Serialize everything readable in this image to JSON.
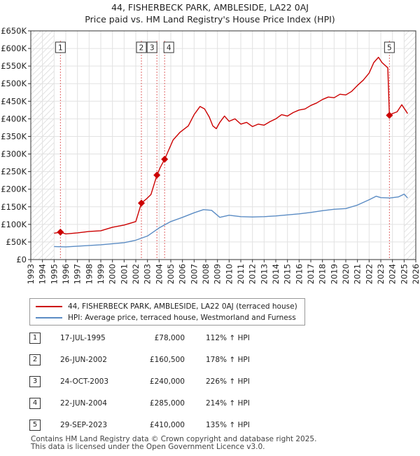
{
  "title_line1": "44, FISHERBECK PARK, AMBLESIDE, LA22 0AJ",
  "title_line2": "Price paid vs. HM Land Registry's House Price Index (HPI)",
  "chart_data": {
    "type": "line",
    "title": "44, FISHERBECK PARK, AMBLESIDE, LA22 0AJ — Price paid vs. HM Land Registry's House Price Index (HPI)",
    "xlim": [
      1993,
      2026
    ],
    "ylim": [
      0,
      650000
    ],
    "y_ticks": [
      0,
      50000,
      100000,
      150000,
      200000,
      250000,
      300000,
      350000,
      400000,
      450000,
      500000,
      550000,
      600000,
      650000
    ],
    "y_tick_labels": [
      "£0",
      "£50K",
      "£100K",
      "£150K",
      "£200K",
      "£250K",
      "£300K",
      "£350K",
      "£400K",
      "£450K",
      "£500K",
      "£550K",
      "£600K",
      "£650K"
    ],
    "x_ticks": [
      1993,
      1994,
      1995,
      1996,
      1997,
      1998,
      1999,
      2000,
      2001,
      2002,
      2003,
      2004,
      2005,
      2006,
      2007,
      2008,
      2009,
      2010,
      2011,
      2012,
      2013,
      2014,
      2015,
      2016,
      2017,
      2018,
      2019,
      2020,
      2021,
      2022,
      2023,
      2024,
      2025,
      2026
    ],
    "x_tick_labels": [
      "1993",
      "1994",
      "1995",
      "1996",
      "1997",
      "1998",
      "1999",
      "2000",
      "2001",
      "2002",
      "2003",
      "2004",
      "2005",
      "2006",
      "2007",
      "2008",
      "2009",
      "2010",
      "2011",
      "2012",
      "2013",
      "2014",
      "2015",
      "2016",
      "2017",
      "2018",
      "2019",
      "2020",
      "2021",
      "2022",
      "2023",
      "2024",
      "2025",
      "2026"
    ],
    "hatched_ranges": [
      [
        1993,
        1995.0
      ],
      [
        2025.0,
        2026
      ]
    ],
    "series": [
      {
        "name": "44, FISHERBECK PARK, AMBLESIDE, LA22 0AJ (terraced house)",
        "color": "#cc0000",
        "x": [
          1995.0,
          1995.54,
          1996.0,
          1997.0,
          1998.0,
          1999.0,
          2000.0,
          2001.0,
          2001.5,
          2002.0,
          2002.48,
          2002.9,
          2003.3,
          2003.81,
          2004.1,
          2004.47,
          2004.8,
          2005.2,
          2005.8,
          2006.5,
          2007.0,
          2007.5,
          2007.9,
          2008.3,
          2008.6,
          2008.9,
          2009.2,
          2009.6,
          2010.0,
          2010.5,
          2011.0,
          2011.5,
          2012.0,
          2012.5,
          2013.0,
          2013.5,
          2014.0,
          2014.5,
          2015.0,
          2015.5,
          2016.0,
          2016.5,
          2017.0,
          2017.5,
          2018.0,
          2018.5,
          2019.0,
          2019.5,
          2020.0,
          2020.5,
          2021.0,
          2021.5,
          2022.0,
          2022.4,
          2022.8,
          2023.1,
          2023.6,
          2023.74,
          2024.0,
          2024.4,
          2024.8,
          2025.1,
          2025.3
        ],
        "values": [
          75000,
          78000,
          73000,
          76000,
          80000,
          82000,
          92000,
          98000,
          103000,
          108000,
          160500,
          172000,
          185000,
          240000,
          262000,
          285000,
          310000,
          340000,
          362000,
          380000,
          412000,
          435000,
          428000,
          405000,
          380000,
          372000,
          390000,
          408000,
          393000,
          400000,
          385000,
          390000,
          378000,
          385000,
          382000,
          392000,
          400000,
          412000,
          408000,
          418000,
          425000,
          428000,
          438000,
          445000,
          455000,
          462000,
          460000,
          470000,
          468000,
          478000,
          495000,
          510000,
          530000,
          560000,
          575000,
          560000,
          545000,
          410000,
          415000,
          420000,
          440000,
          425000,
          415000
        ]
      },
      {
        "name": "HPI: Average price, terraced house, Westmorland and Furness",
        "color": "#5b8cc4",
        "x": [
          1995.0,
          1996.0,
          1997.0,
          1998.0,
          1999.0,
          2000.0,
          2001.0,
          2002.0,
          2003.0,
          2004.0,
          2005.0,
          2006.0,
          2007.0,
          2007.8,
          2008.5,
          2009.2,
          2010.0,
          2011.0,
          2012.0,
          2013.0,
          2014.0,
          2015.0,
          2016.0,
          2017.0,
          2018.0,
          2019.0,
          2020.0,
          2021.0,
          2022.0,
          2022.6,
          2023.0,
          2023.8,
          2024.5,
          2025.0,
          2025.3
        ],
        "values": [
          37000,
          36000,
          38000,
          40000,
          42000,
          45000,
          48000,
          55000,
          67000,
          90000,
          108000,
          120000,
          133000,
          142000,
          140000,
          120000,
          126000,
          122000,
          121000,
          122000,
          124000,
          127000,
          130000,
          134000,
          139000,
          143000,
          145000,
          155000,
          170000,
          180000,
          176000,
          175000,
          178000,
          186000,
          175000
        ]
      }
    ],
    "sales": [
      {
        "n": "1",
        "x": 1995.54,
        "value": 78000
      },
      {
        "n": "2",
        "x": 2002.48,
        "value": 160500
      },
      {
        "n": "3",
        "x": 2003.81,
        "value": 240000
      },
      {
        "n": "4",
        "x": 2004.47,
        "value": 285000
      },
      {
        "n": "5",
        "x": 2023.74,
        "value": 410000
      }
    ]
  },
  "legend": {
    "price_label": "44, FISHERBECK PARK, AMBLESIDE, LA22 0AJ (terraced house)",
    "hpi_label": "HPI: Average price, terraced house, Westmorland and Furness"
  },
  "sales_table": [
    {
      "n": "1",
      "date": "17-JUL-1995",
      "price": "£78,000",
      "hpi": "112% ↑ HPI"
    },
    {
      "n": "2",
      "date": "26-JUN-2002",
      "price": "£160,500",
      "hpi": "178% ↑ HPI"
    },
    {
      "n": "3",
      "date": "24-OCT-2003",
      "price": "£240,000",
      "hpi": "226% ↑ HPI"
    },
    {
      "n": "4",
      "date": "22-JUN-2004",
      "price": "£285,000",
      "hpi": "214% ↑ HPI"
    },
    {
      "n": "5",
      "date": "29-SEP-2023",
      "price": "£410,000",
      "hpi": "135% ↑ HPI"
    }
  ],
  "footer": {
    "line1": "Contains HM Land Registry data © Crown copyright and database right 2025.",
    "line2": "This data is licensed under the Open Government Licence v3.0."
  }
}
